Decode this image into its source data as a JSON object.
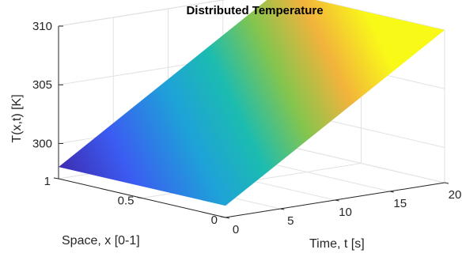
{
  "chart_data": {
    "type": "surface",
    "title": "Distributed Temperature",
    "xlabel": "Time, t [s]",
    "ylabel": "Space, x [0-1]",
    "zlabel": "T(x,t) [K]",
    "time_range": [
      0,
      20
    ],
    "space_range": [
      0,
      1
    ],
    "z_range": [
      298,
      310
    ],
    "time_ticks": [
      "0",
      "5",
      "10",
      "15",
      "20"
    ],
    "space_ticks": [
      "0",
      "0.5",
      "1"
    ],
    "z_ticks": [
      "300",
      "305",
      "310"
    ],
    "surface": {
      "description_points": [
        {
          "t": 0,
          "x": 0,
          "T": 298
        },
        {
          "t": 0,
          "x": 1,
          "T": 298
        },
        {
          "t": 20,
          "x": 0,
          "T": 310
        },
        {
          "t": 20,
          "x": 1,
          "T": 310
        }
      ],
      "colormap": "parula"
    },
    "grid": true
  }
}
